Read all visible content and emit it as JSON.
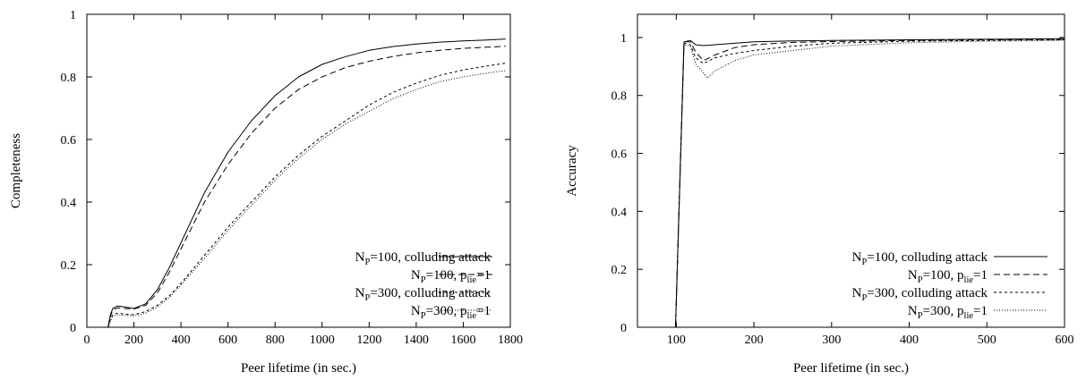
{
  "chart_data": [
    {
      "type": "line",
      "xlabel": "Peer lifetime (in sec.)",
      "ylabel": "Completeness",
      "xlim": [
        0,
        1800
      ],
      "ylim": [
        0,
        1
      ],
      "xticks": [
        0,
        200,
        400,
        600,
        800,
        1000,
        1200,
        1400,
        1600,
        1800
      ],
      "yticks": [
        0,
        0.2,
        0.4,
        0.6,
        0.8,
        1
      ],
      "xtick_labels": [
        "0",
        "200",
        "400",
        "600",
        "800",
        "1000",
        "1200",
        "1400",
        "1600",
        "1800"
      ],
      "ytick_labels": [
        "0",
        "0.2",
        "0.4",
        "0.6",
        "0.8",
        "1"
      ],
      "grid": false,
      "legend_position": "bottom-right",
      "series": [
        {
          "name": "NP=100, colluding attack",
          "legend": {
            "pre": "N",
            "sub": "P",
            "post": "=100, colluding attack"
          },
          "style": "solid",
          "x": [
            90,
            100,
            110,
            130,
            160,
            200,
            250,
            300,
            350,
            400,
            500,
            600,
            700,
            800,
            900,
            1000,
            1100,
            1200,
            1300,
            1400,
            1500,
            1600,
            1700,
            1780
          ],
          "y": [
            0,
            0.04,
            0.06,
            0.068,
            0.065,
            0.06,
            0.075,
            0.12,
            0.19,
            0.27,
            0.43,
            0.56,
            0.66,
            0.74,
            0.8,
            0.84,
            0.865,
            0.885,
            0.897,
            0.905,
            0.911,
            0.915,
            0.918,
            0.921
          ]
        },
        {
          "name": "NP=100, plie=1",
          "legend": {
            "pre": "N",
            "sub": "P",
            "mid": "=100, p",
            "sub2": "lie",
            "post": "=1"
          },
          "style": "dashed",
          "x": [
            90,
            100,
            110,
            130,
            160,
            200,
            250,
            300,
            350,
            400,
            500,
            600,
            700,
            800,
            900,
            1000,
            1100,
            1200,
            1300,
            1400,
            1500,
            1600,
            1700,
            1780
          ],
          "y": [
            0,
            0.035,
            0.055,
            0.062,
            0.06,
            0.058,
            0.07,
            0.11,
            0.175,
            0.25,
            0.4,
            0.52,
            0.62,
            0.7,
            0.76,
            0.8,
            0.83,
            0.85,
            0.865,
            0.877,
            0.885,
            0.891,
            0.895,
            0.898
          ]
        },
        {
          "name": "NP=300, colluding attack",
          "legend": {
            "pre": "N",
            "sub": "P",
            "post": "=300, colluding attack"
          },
          "style": "short-dashed",
          "x": [
            90,
            100,
            110,
            130,
            160,
            200,
            250,
            300,
            350,
            400,
            500,
            600,
            700,
            800,
            900,
            1000,
            1100,
            1200,
            1300,
            1400,
            1500,
            1600,
            1700,
            1780
          ],
          "y": [
            0,
            0.025,
            0.04,
            0.045,
            0.042,
            0.04,
            0.05,
            0.07,
            0.1,
            0.14,
            0.23,
            0.32,
            0.4,
            0.48,
            0.55,
            0.61,
            0.66,
            0.71,
            0.75,
            0.78,
            0.805,
            0.822,
            0.835,
            0.844
          ]
        },
        {
          "name": "NP=300, plie=1",
          "legend": {
            "pre": "N",
            "sub": "P",
            "mid": "=300, p",
            "sub2": "lie",
            "post": "=1"
          },
          "style": "dotted",
          "x": [
            90,
            100,
            110,
            130,
            160,
            200,
            250,
            300,
            350,
            400,
            500,
            600,
            700,
            800,
            900,
            1000,
            1100,
            1200,
            1300,
            1400,
            1500,
            1600,
            1700,
            1780
          ],
          "y": [
            0,
            0.02,
            0.035,
            0.04,
            0.038,
            0.036,
            0.045,
            0.065,
            0.095,
            0.135,
            0.22,
            0.31,
            0.39,
            0.47,
            0.54,
            0.6,
            0.65,
            0.69,
            0.73,
            0.76,
            0.785,
            0.8,
            0.812,
            0.82
          ]
        }
      ]
    },
    {
      "type": "line",
      "xlabel": "Peer lifetime (in sec.)",
      "ylabel": "Accuracy",
      "xlim": [
        50,
        600
      ],
      "ylim": [
        0,
        1.08
      ],
      "xticks": [
        100,
        200,
        300,
        400,
        500,
        600
      ],
      "yticks": [
        0,
        0.2,
        0.4,
        0.6,
        0.8,
        1
      ],
      "xtick_labels": [
        "100",
        "200",
        "300",
        "400",
        "500",
        "600"
      ],
      "ytick_labels": [
        "0",
        "0.2",
        "0.4",
        "0.6",
        "0.8",
        "1"
      ],
      "grid": false,
      "legend_position": "bottom-right",
      "series": [
        {
          "name": "NP=100, colluding attack",
          "legend": {
            "pre": "N",
            "sub": "P",
            "post": "=100, colluding attack"
          },
          "style": "solid",
          "x": [
            50,
            99,
            110,
            118,
            125,
            135,
            150,
            175,
            200,
            250,
            300,
            400,
            500,
            600
          ],
          "y": [
            0,
            0,
            0.985,
            0.99,
            0.975,
            0.972,
            0.975,
            0.98,
            0.985,
            0.988,
            0.99,
            0.992,
            0.994,
            0.996
          ]
        },
        {
          "name": "NP=100, plie=1",
          "legend": {
            "pre": "N",
            "sub": "P",
            "mid": "=100, p",
            "sub2": "lie",
            "post": "=1"
          },
          "style": "dashed",
          "x": [
            50,
            99,
            110,
            118,
            125,
            135,
            150,
            175,
            200,
            250,
            300,
            400,
            500,
            600
          ],
          "y": [
            0,
            0,
            0.985,
            0.985,
            0.95,
            0.92,
            0.94,
            0.965,
            0.975,
            0.983,
            0.986,
            0.99,
            0.992,
            0.994
          ]
        },
        {
          "name": "NP=300, colluding attack",
          "legend": {
            "pre": "N",
            "sub": "P",
            "post": "=300, colluding attack"
          },
          "style": "short-dashed",
          "x": [
            50,
            99,
            110,
            118,
            125,
            135,
            150,
            175,
            200,
            250,
            300,
            400,
            500,
            600
          ],
          "y": [
            0,
            0,
            0.98,
            0.975,
            0.93,
            0.91,
            0.93,
            0.945,
            0.955,
            0.97,
            0.98,
            0.987,
            0.99,
            0.992
          ]
        },
        {
          "name": "NP=300, plie=1",
          "legend": {
            "pre": "N",
            "sub": "P",
            "mid": "=300, p",
            "sub2": "lie",
            "post": "=1"
          },
          "style": "dotted",
          "x": [
            50,
            99,
            110,
            118,
            125,
            140,
            150,
            175,
            200,
            250,
            300,
            400,
            500,
            600
          ],
          "y": [
            0,
            0,
            0.975,
            0.97,
            0.91,
            0.86,
            0.885,
            0.92,
            0.94,
            0.955,
            0.97,
            0.982,
            0.987,
            0.99
          ]
        }
      ]
    }
  ]
}
